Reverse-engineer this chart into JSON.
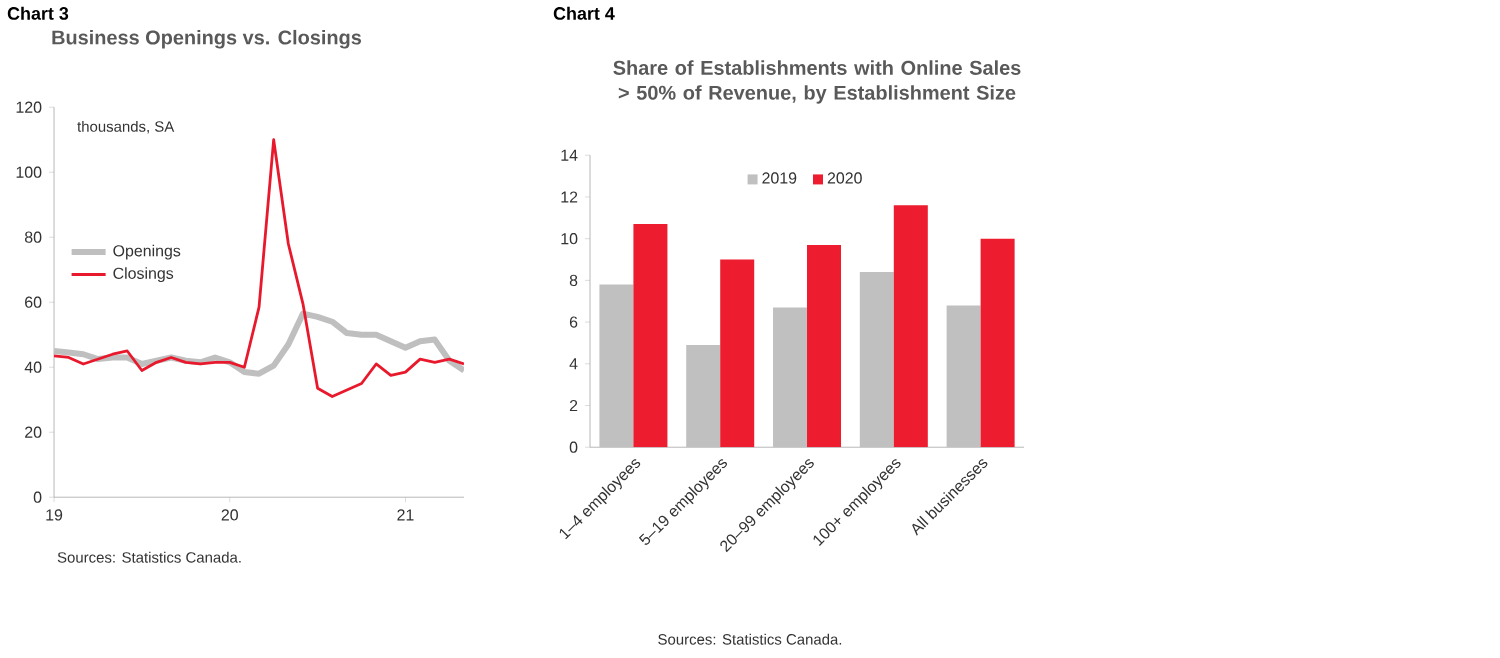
{
  "chart_data": [
    {
      "type": "line",
      "title": "Business Openings vs. Closings",
      "annotations": [
        "Chart 3",
        "thousands, SA",
        "Sources: Statistics Canada."
      ],
      "x": [
        "2019-01",
        "2019-02",
        "2019-03",
        "2019-04",
        "2019-05",
        "2019-06",
        "2019-07",
        "2019-08",
        "2019-09",
        "2019-10",
        "2019-11",
        "2019-12",
        "2020-01",
        "2020-02",
        "2020-03",
        "2020-04",
        "2020-05",
        "2020-06",
        "2020-07",
        "2020-08",
        "2020-09",
        "2020-10",
        "2020-11",
        "2020-12",
        "2021-01",
        "2021-02",
        "2021-03",
        "2021-04",
        "2021-05"
      ],
      "series": [
        {
          "name": "Openings",
          "color": "#bfbfbf",
          "values": [
            45,
            44.5,
            44,
            42.5,
            43,
            43,
            41,
            42,
            43,
            42,
            41.5,
            43,
            41.5,
            38.5,
            38,
            40.5,
            47,
            56.5,
            55.5,
            54,
            50.5,
            50,
            50,
            48,
            46,
            48,
            48.5,
            42,
            39
          ]
        },
        {
          "name": "Closings",
          "color": "#e8192c",
          "values": [
            43.5,
            43,
            41,
            42.5,
            44,
            45,
            39,
            41.5,
            43,
            41.5,
            41,
            41.5,
            41.5,
            40,
            58.5,
            110,
            78,
            59.5,
            33.5,
            31,
            33,
            35,
            41,
            37.5,
            38.5,
            42.5,
            41.5,
            42.5,
            41
          ]
        }
      ],
      "xlim": [
        "2019-01",
        "2021-05"
      ],
      "xticks": [
        {
          "value": "2019-01",
          "label": "19"
        },
        {
          "value": "2020-01",
          "label": "20"
        },
        {
          "value": "2021-01",
          "label": "21"
        }
      ],
      "ylim": [
        0,
        120
      ],
      "yticks": [
        0,
        20,
        40,
        60,
        80,
        100,
        120
      ],
      "legend": "left",
      "grid": false
    },
    {
      "type": "bar",
      "title": "Share of Establishments with Online Sales > 50% of Revenue, by Establishment Size",
      "annotations": [
        "Chart 4",
        "Sources: Statistics Canada."
      ],
      "categories": [
        "1–4 employees",
        "5–19 employees",
        "20–99 employees",
        "100+ employees",
        "All businesses"
      ],
      "series": [
        {
          "name": "2019",
          "color": "#c0c0c0",
          "values": [
            7.8,
            4.9,
            6.7,
            8.4,
            6.8
          ]
        },
        {
          "name": "2020",
          "color": "#ed1c2e",
          "values": [
            10.7,
            9.0,
            9.7,
            11.6,
            10.0
          ]
        }
      ],
      "ylim": [
        0,
        14
      ],
      "yticks": [
        0,
        2,
        4,
        6,
        8,
        10,
        12,
        14
      ],
      "legend": "top",
      "grid": false
    }
  ]
}
